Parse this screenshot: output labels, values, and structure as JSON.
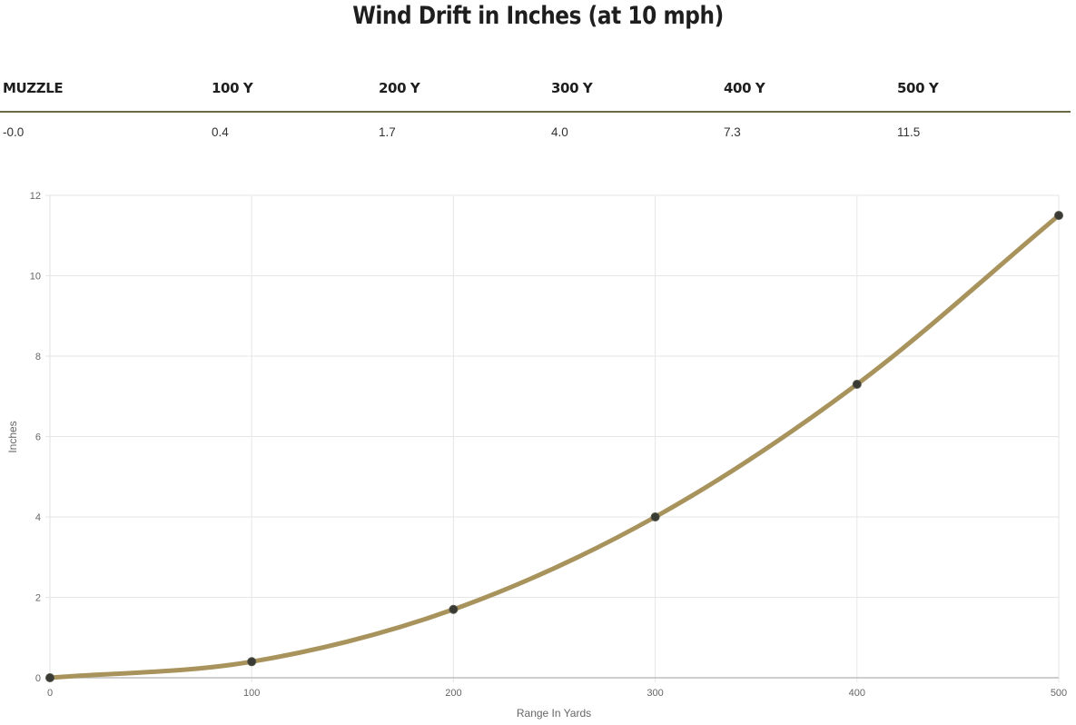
{
  "title": "Wind Drift in Inches (at 10 mph)",
  "table": {
    "headers": [
      "MUZZLE",
      "100 Y",
      "200 Y",
      "300 Y",
      "400 Y",
      "500 Y"
    ],
    "values": [
      "-0.0",
      "0.4",
      "1.7",
      "4.0",
      "7.3",
      "11.5"
    ]
  },
  "chart_data": {
    "type": "line",
    "xlabel": "Range In Yards",
    "ylabel": "Inches",
    "x": [
      0,
      100,
      200,
      300,
      400,
      500
    ],
    "series": [
      {
        "values": [
          0,
          0.4,
          1.7,
          4.0,
          7.3,
          11.5
        ]
      }
    ],
    "xlim": [
      0,
      500
    ],
    "ylim": [
      0,
      12
    ],
    "xticks": [
      0,
      100,
      200,
      300,
      400,
      500
    ],
    "yticks": [
      0,
      2,
      4,
      6,
      8,
      10,
      12
    ],
    "grid": true,
    "smooth": true,
    "line_color": "#a8935c",
    "point_color": "#3a3a34"
  }
}
